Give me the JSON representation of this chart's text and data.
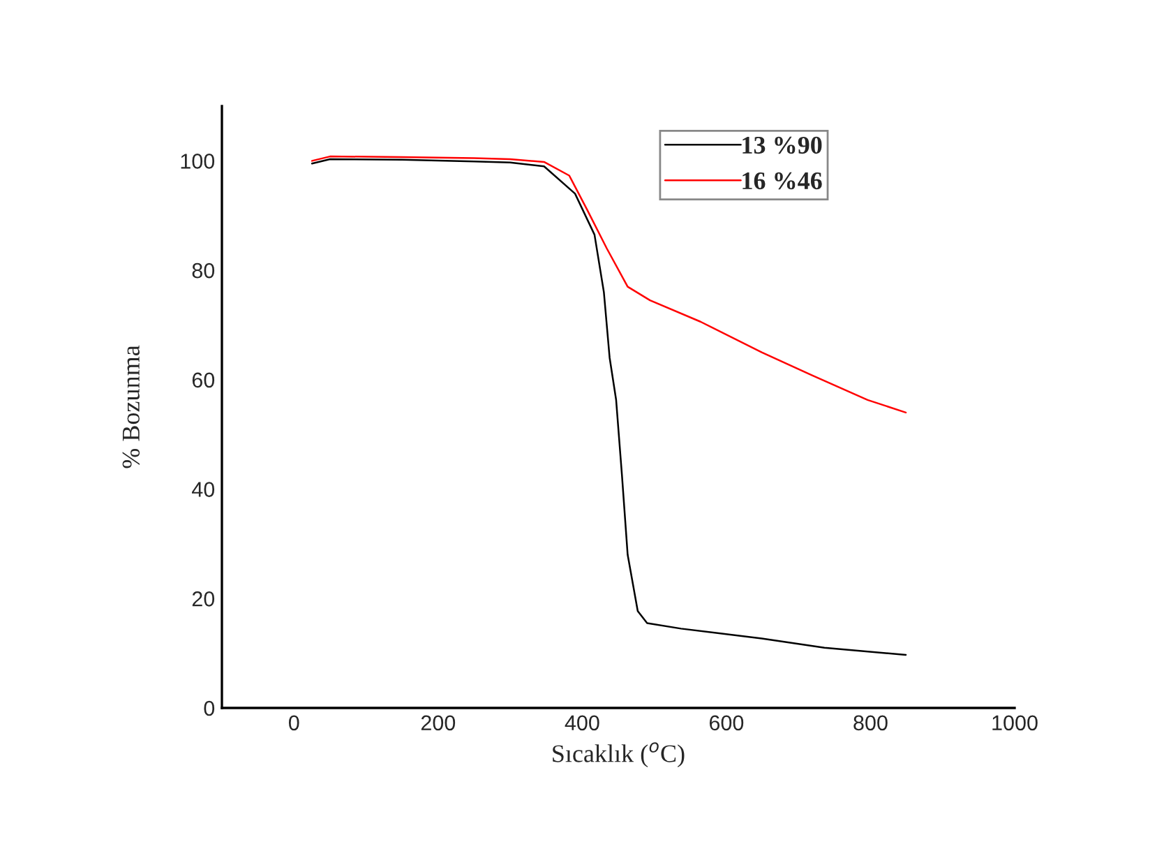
{
  "chart_data": {
    "type": "line",
    "xlabel": "Sıcaklık ($^{o}$C)",
    "ylabel": "% Bozunma",
    "xlim": [
      -100,
      1000
    ],
    "xticks": [
      0,
      200,
      400,
      600,
      800,
      1000
    ],
    "ylim": [
      0,
      110
    ],
    "yticks": [
      0,
      20,
      40,
      60,
      80,
      100
    ],
    "grid": false,
    "legend": "top right",
    "marker": "none",
    "line_style": "solid",
    "series": [
      {
        "name": "13 %90",
        "color": "#000000",
        "x": [
          25,
          50,
          150,
          250,
          300,
          347,
          390,
          417,
          430,
          438,
          447,
          455,
          463,
          477,
          490,
          537,
          649,
          736,
          849
        ],
        "values": [
          99.5,
          100.3,
          100.2,
          99.9,
          99.7,
          99,
          94,
          86.5,
          76,
          64,
          56.3,
          42.7,
          28,
          17.7,
          15.5,
          14.5,
          12.7,
          11,
          9.7
        ]
      },
      {
        "name": "16 %46",
        "color": "#ff0000",
        "x": [
          25,
          50,
          150,
          250,
          300,
          347,
          382,
          407,
          434,
          463,
          494,
          564,
          649,
          719,
          796,
          849
        ],
        "values": [
          100,
          100.8,
          100.7,
          100.5,
          100.3,
          99.8,
          97.3,
          91,
          84,
          77,
          74.5,
          70.6,
          65,
          60.8,
          56.3,
          54
        ]
      }
    ]
  }
}
